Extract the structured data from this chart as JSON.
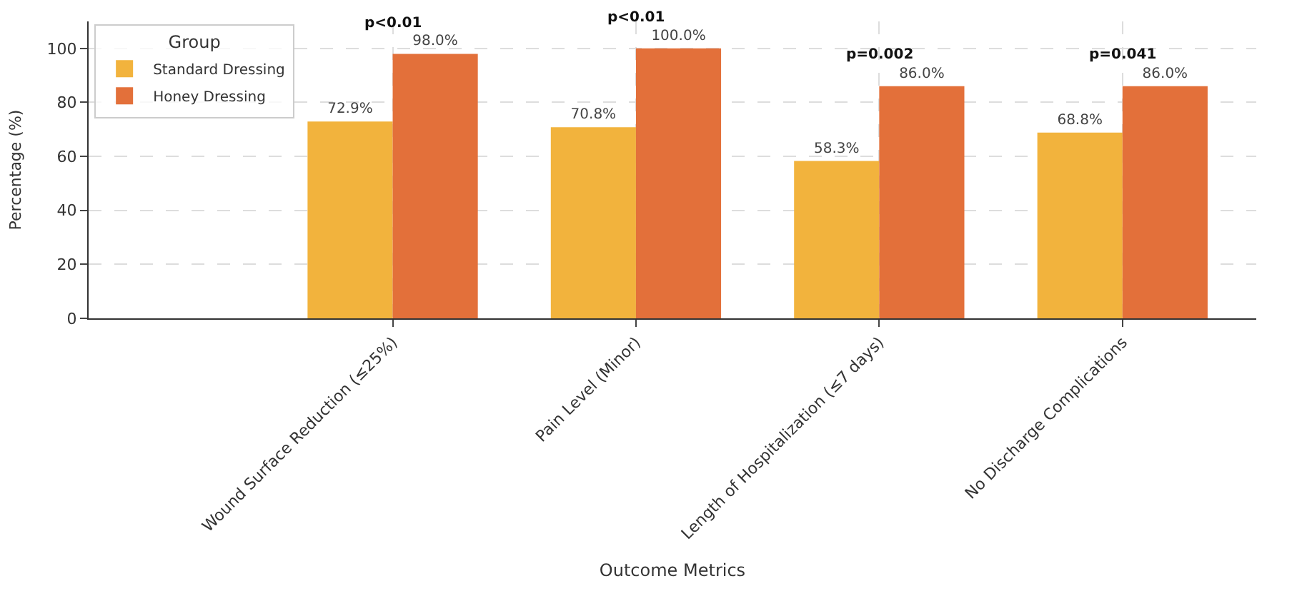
{
  "chart_data": {
    "type": "bar",
    "xlabel": "Outcome Metrics",
    "ylabel": "Percentage (%)",
    "legend_title": "Group",
    "categories": [
      "Wound Surface Reduction (≤25%)",
      "Pain Level (Minor)",
      "Length of Hospitalization (≤7 days)",
      "No Discharge Complications"
    ],
    "series": [
      {
        "name": "Standard Dressing",
        "color": "#f2b33d",
        "values": [
          72.9,
          70.8,
          58.3,
          68.8
        ],
        "value_labels": [
          "72.9%",
          "70.8%",
          "58.3%",
          "68.8%"
        ]
      },
      {
        "name": "Honey Dressing",
        "color": "#e3703a",
        "values": [
          98.0,
          100.0,
          86.0,
          86.0
        ],
        "value_labels": [
          "98.0%",
          "100.0%",
          "86.0%",
          "86.0%"
        ]
      }
    ],
    "annotations": [
      "p<0.01",
      "p<0.01",
      "p=0.002",
      "p=0.041"
    ],
    "ylim": [
      0,
      110
    ],
    "yticks": [
      0,
      20,
      40,
      60,
      80,
      100
    ],
    "grid": true,
    "legend": "top left"
  }
}
